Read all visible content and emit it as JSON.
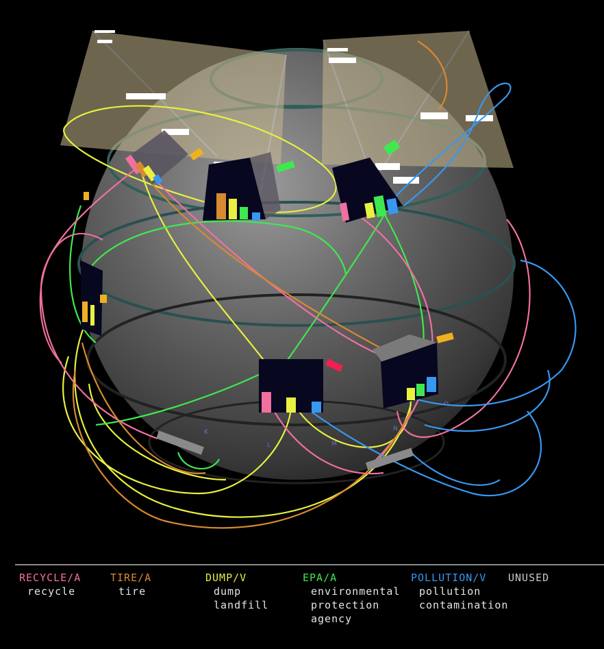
{
  "legend": {
    "columns": [
      {
        "key": "recycle",
        "head": "RECYCLE/A",
        "color": "#f070a0",
        "terms": [
          "recycle"
        ]
      },
      {
        "key": "tire",
        "head": "TIRE/A",
        "color": "#d88a30",
        "terms": [
          "tire"
        ]
      },
      {
        "key": "dump",
        "head": "DUMP/V",
        "color": "#e8f040",
        "terms": [
          "dump",
          "landfill"
        ]
      },
      {
        "key": "epa",
        "head": "EPA/A",
        "color": "#40e850",
        "terms": [
          "environmental",
          "protection",
          "agency"
        ]
      },
      {
        "key": "pollution",
        "head": "POLLUTION/V",
        "color": "#3898f0",
        "terms": [
          "pollution",
          "contamination"
        ]
      },
      {
        "key": "unused",
        "head": "UNUSED",
        "color": "#c8c8c8",
        "terms": []
      }
    ]
  },
  "globe_letters": [
    "K",
    "L",
    "M",
    "N",
    "O"
  ],
  "colors": {
    "background": "#000000",
    "sphere": "#5a5a5a",
    "panel": "#c8b890",
    "box_face": "#070720"
  }
}
